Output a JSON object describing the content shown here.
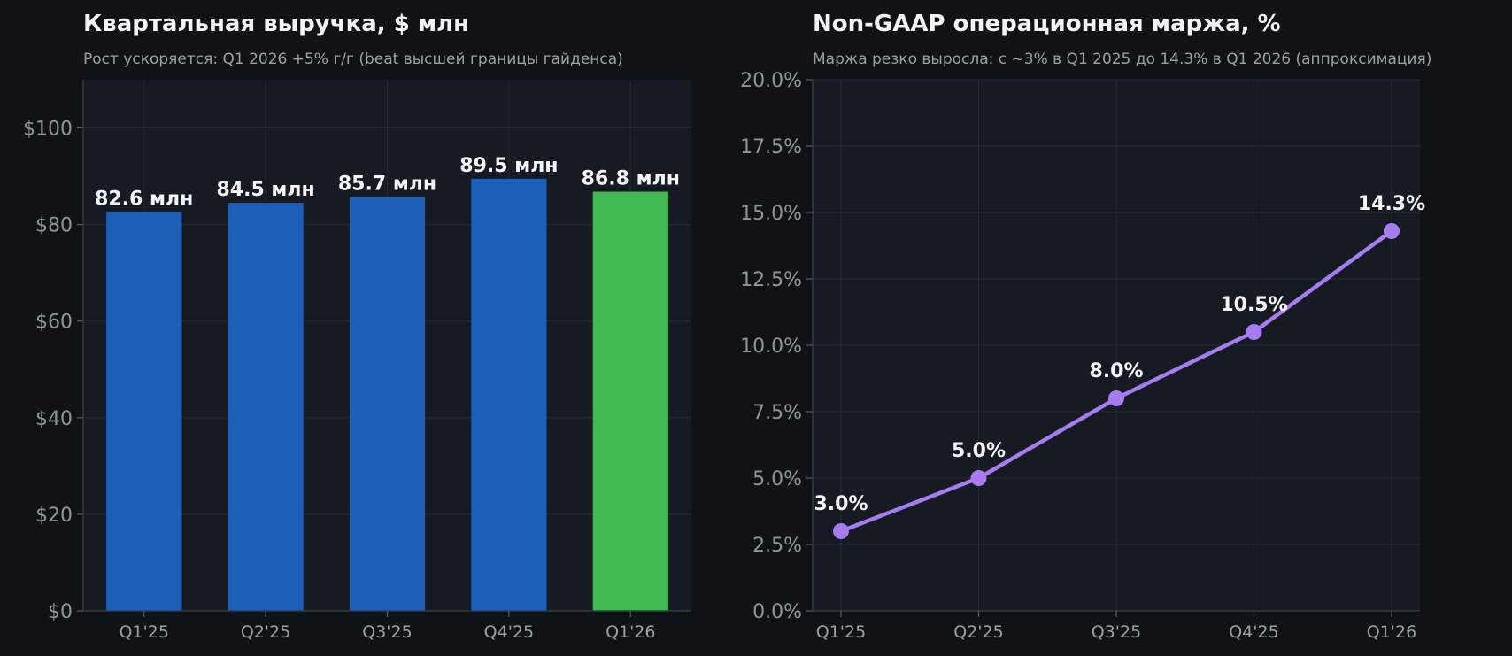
{
  "chart_data": [
    {
      "type": "bar",
      "title": "Квартальная выручка, $ млн",
      "subtitle": "Рост ускоряется: Q1 2026 +5% г/г (beat высшей границы гайденса)",
      "categories": [
        "Q1'25",
        "Q2'25",
        "Q3'25",
        "Q4'25",
        "Q1'26"
      ],
      "values": [
        82.6,
        84.5,
        85.7,
        89.5,
        86.8
      ],
      "data_labels": [
        "82.6 млн",
        "84.5 млн",
        "85.7 млн",
        "89.5 млн",
        "86.8 млн"
      ],
      "yticks": [
        0,
        20,
        40,
        60,
        80,
        100
      ],
      "ytick_labels": [
        "$0",
        "$20",
        "$40",
        "$60",
        "$80",
        "$100"
      ],
      "ylim": [
        0,
        110
      ],
      "bar_colors": [
        "#1c5fb8",
        "#1c5fb8",
        "#1c5fb8",
        "#1c5fb8",
        "#3fba52"
      ],
      "grid": true,
      "xlabel": "",
      "ylabel": ""
    },
    {
      "type": "line",
      "title": "Non-GAAP операционная маржа, %",
      "subtitle": "Маржа резко выросла: с ~3% в Q1 2025 до 14.3% в Q1 2026 (аппроксимация)",
      "categories": [
        "Q1'25",
        "Q2'25",
        "Q3'25",
        "Q4'25",
        "Q1'26"
      ],
      "values": [
        3.0,
        5.0,
        8.0,
        10.5,
        14.3
      ],
      "data_labels": [
        "3.0%",
        "5.0%",
        "8.0%",
        "10.5%",
        "14.3%"
      ],
      "yticks": [
        0,
        2.5,
        5,
        7.5,
        10,
        12.5,
        15,
        17.5,
        20
      ],
      "ytick_labels": [
        "0.0%",
        "2.5%",
        "5.0%",
        "7.5%",
        "10.0%",
        "12.5%",
        "15.0%",
        "17.5%",
        "20.0%"
      ],
      "ylim": [
        0,
        20
      ],
      "line_color": "#a67cf0",
      "grid": true,
      "xlabel": "",
      "ylabel": ""
    }
  ],
  "colors": {
    "background": "#0f1317",
    "plot_background": "#161a22",
    "text": "#f2f4f7"
  }
}
